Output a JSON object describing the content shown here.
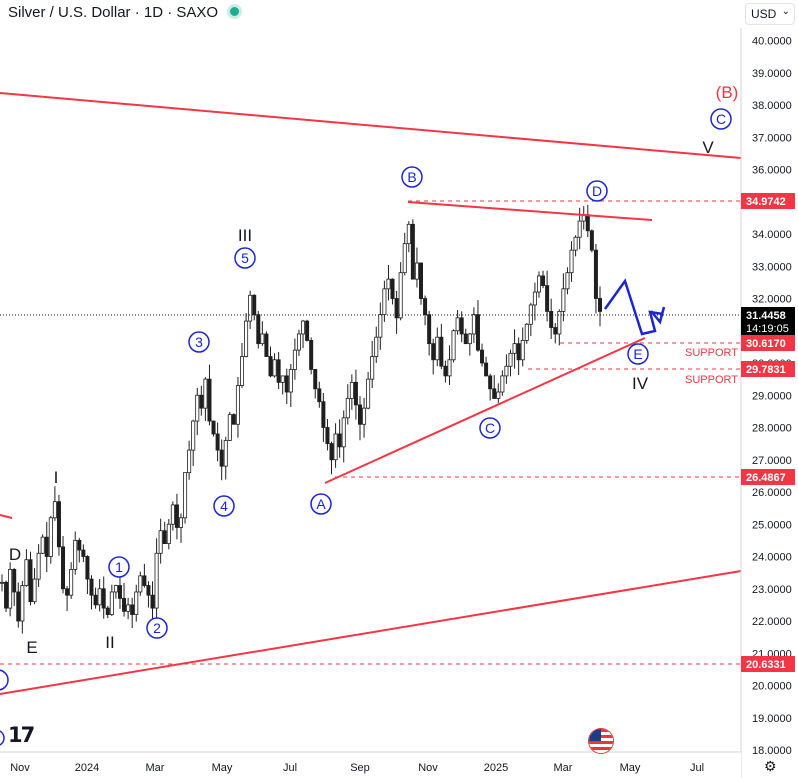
{
  "header": {
    "title": "Silver / U.S. Dollar · 1D · SAXO",
    "currency": "USD"
  },
  "chart_data": {
    "type": "line",
    "title": "Silver / U.S. Dollar · 1D · SAXO",
    "xlabel": "",
    "ylabel": "",
    "ylim": [
      18,
      40.6
    ],
    "x_tick_labels": [
      "Nov",
      "2024",
      "Mar",
      "May",
      "Jul",
      "Sep",
      "Nov",
      "2025",
      "Mar",
      "May",
      "Jul"
    ],
    "y_tick_labels": [
      "18.0000",
      "19.0000",
      "20.0000",
      "21.0000",
      "22.0000",
      "23.0000",
      "24.0000",
      "25.0000",
      "26.0000",
      "27.0000",
      "28.0000",
      "29.0000",
      "30.0000",
      "31.0000",
      "32.0000",
      "33.0000",
      "34.0000",
      "35.0000",
      "36.0000",
      "37.0000",
      "38.0000",
      "39.0000",
      "40.0000"
    ],
    "series": [
      {
        "values": [
          23.2,
          22.4,
          23.6,
          22.9,
          22.0,
          23.1,
          23.9,
          22.6,
          23.3,
          24.1,
          24.6,
          24.0,
          25.2,
          25.7,
          24.3,
          23.0,
          22.8,
          23.6,
          24.5,
          24.2,
          24.0,
          23.3,
          22.8,
          22.5,
          23.0,
          22.4,
          22.2,
          22.9,
          23.1,
          22.7,
          22.3,
          22.5,
          22.2,
          22.9,
          23.4,
          23.1,
          22.8,
          22.4,
          24.1,
          24.8,
          24.4,
          25.0,
          25.6,
          24.9,
          25.2,
          26.6,
          27.3,
          28.2,
          29.0,
          28.6,
          29.5,
          28.2,
          27.8,
          27.3,
          26.8,
          27.6,
          28.4,
          28.1,
          29.3,
          30.2,
          31.3,
          32.1,
          31.5,
          30.6,
          30.9,
          30.2,
          29.6,
          30.1,
          29.4,
          29.6,
          29.1,
          29.8,
          30.4,
          30.9,
          31.3,
          30.7,
          29.8,
          29.2,
          28.8,
          28.0,
          27.5,
          27.0,
          27.8,
          27.4,
          28.3,
          28.9,
          29.4,
          28.7,
          28.1,
          28.6,
          29.5,
          30.2,
          30.8,
          31.5,
          32.3,
          32.6,
          32.0,
          31.4,
          32.8,
          33.7,
          34.3,
          32.6,
          33.1,
          32.0,
          31.5,
          30.6,
          30.1,
          30.8,
          29.9,
          29.6,
          30.1,
          31.0,
          31.4,
          30.9,
          30.6,
          30.9,
          31.5,
          30.4,
          30.0,
          29.6,
          29.2,
          28.9,
          29.1,
          29.6,
          29.9,
          30.3,
          30.6,
          30.1,
          30.7,
          31.2,
          31.8,
          32.2,
          32.7,
          32.4,
          31.6,
          31.1,
          30.9,
          31.6,
          32.3,
          32.8,
          33.5,
          33.9,
          34.4,
          34.6,
          34.1,
          33.5,
          32.0,
          31.6
        ],
        "x_range": [
          "2023-10-17",
          "2025-04-11"
        ]
      }
    ],
    "price_labels": [
      "34.9742",
      "31.4458",
      "30.6170",
      "29.7831",
      "26.4867",
      "20.6331"
    ],
    "current_price": "31.4458",
    "countdown": "14:19:05",
    "support_labels": [
      "SUPPORT",
      "SUPPORT"
    ],
    "wave_labels": {
      "roman": [
        "I",
        "II",
        "III",
        "IV",
        "V",
        "D",
        "E"
      ],
      "circled": [
        "1",
        "2",
        "3",
        "4",
        "5",
        "A",
        "B",
        "C",
        "D",
        "E",
        "C"
      ],
      "degree": "(B)"
    },
    "colors": {
      "candle": "#1f1f1f",
      "trendline": "#f23645",
      "wave_circle": "#1c25d4",
      "projection": "#1c25d4",
      "price_tag": "#f23645",
      "current_tag": "#000000"
    }
  }
}
